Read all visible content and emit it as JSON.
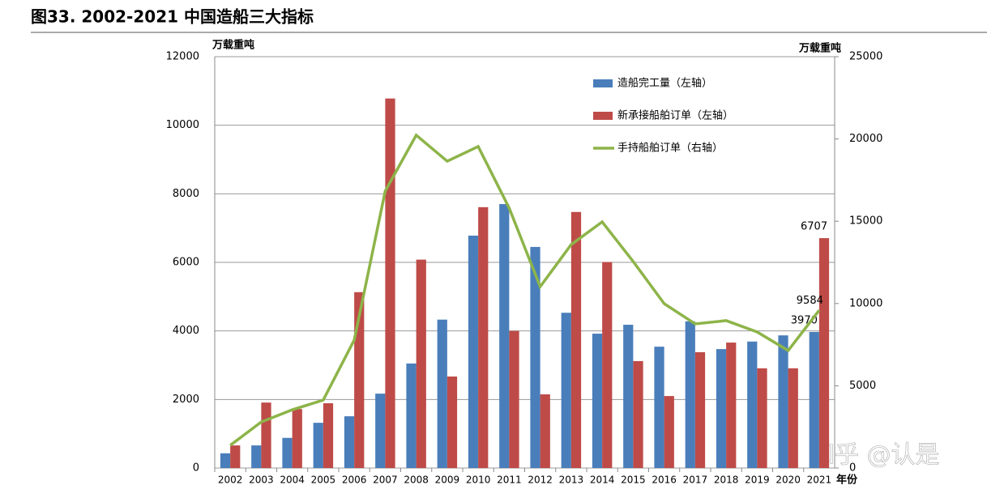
{
  "chart_data": {
    "type": "bar-line",
    "title": "图33. 2002-2021 中国造船三大指标",
    "y_label": "万载重吨",
    "y2_label": "万载重吨",
    "x_label": "年份",
    "watermark": "知乎 @认是",
    "categories": [
      "2002",
      "2003",
      "2004",
      "2005",
      "2006",
      "2007",
      "2008",
      "2009",
      "2010",
      "2011",
      "2012",
      "2013",
      "2014",
      "2015",
      "2016",
      "2017",
      "2018",
      "2019",
      "2020",
      "2021"
    ],
    "series": [
      {
        "name": "造船完工量（左轴）",
        "color": "#4a7ebb",
        "kind": "bar",
        "values": [
          430,
          660,
          880,
          1320,
          1510,
          2170,
          3050,
          4330,
          6780,
          7700,
          6450,
          4530,
          3920,
          4180,
          3540,
          4280,
          3470,
          3690,
          3870,
          3970
        ]
      },
      {
        "name": "新承接船舶订单（左轴）",
        "color": "#be4b48",
        "kind": "bar",
        "values": [
          660,
          1910,
          1720,
          1890,
          5130,
          10780,
          6080,
          2670,
          7610,
          4000,
          2150,
          7470,
          6010,
          3120,
          2100,
          3380,
          3660,
          2910,
          2910,
          6707
        ]
      },
      {
        "name": "手持船舶订单（右轴）",
        "color": "#8db449",
        "kind": "line",
        "axis": "y2",
        "values": [
          1380,
          2800,
          3540,
          4130,
          7780,
          16830,
          20230,
          18650,
          19540,
          15800,
          11020,
          13580,
          14960,
          12550,
          9990,
          8760,
          8960,
          8270,
          7140,
          9584
        ]
      }
    ],
    "ylim": [
      0,
      12000
    ],
    "yticks": [
      0,
      2000,
      4000,
      6000,
      8000,
      10000,
      12000
    ],
    "y2lim": [
      0,
      25000
    ],
    "y2ticks": [
      0,
      5000,
      10000,
      15000,
      20000,
      25000
    ],
    "grid": true,
    "legend": "top-right"
  }
}
